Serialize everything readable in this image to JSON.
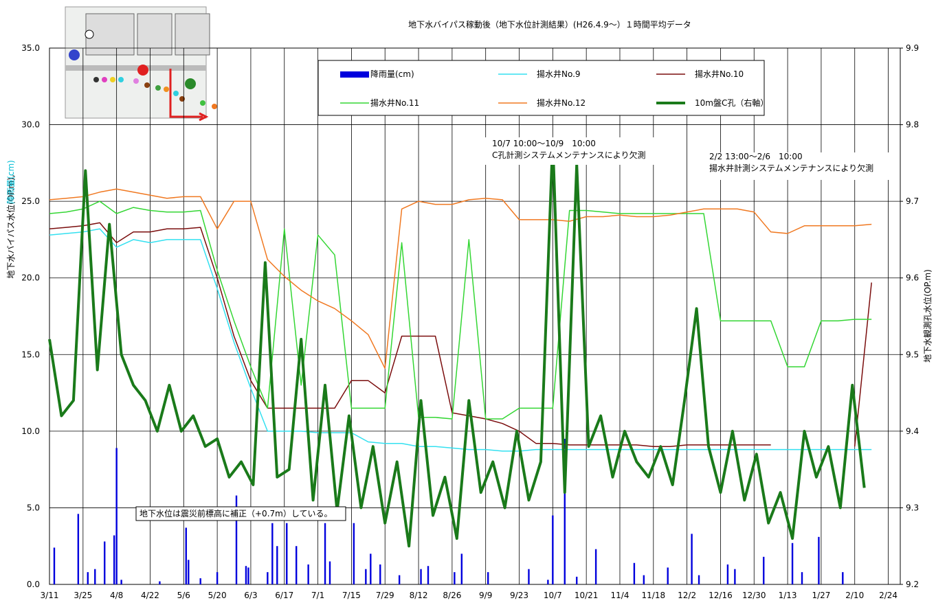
{
  "chart_data": {
    "type": "line",
    "title": "地下水バイパス稼動後（地下水位計測結果）(H26.4.9～）１時間平均データ",
    "y_label": "地下水バイパス水位(OP.m),",
    "y_label_rain": "降雨量(cm)",
    "y2_label": "地下水観測孔水位(OP.m)",
    "annotations": [
      "10/7 10:00～10/9　10:00",
      "C孔計測システムメンテナンスにより欠測",
      "2/2 13:00～2/6　10:00",
      "揚水井計測システムメンテナンスにより欠測",
      "地下水位は震災前標高に補正（+0.7m）している。"
    ],
    "grid": true,
    "xlim": [
      0,
      355
    ],
    "xticks": [
      {
        "value": 0,
        "label": "3/11"
      },
      {
        "value": 14,
        "label": "3/25"
      },
      {
        "value": 28,
        "label": "4/8"
      },
      {
        "value": 42,
        "label": "4/22"
      },
      {
        "value": 56,
        "label": "5/6"
      },
      {
        "value": 70,
        "label": "5/20"
      },
      {
        "value": 84,
        "label": "6/3"
      },
      {
        "value": 98,
        "label": "6/17"
      },
      {
        "value": 112,
        "label": "7/1"
      },
      {
        "value": 126,
        "label": "7/15"
      },
      {
        "value": 140,
        "label": "7/29"
      },
      {
        "value": 154,
        "label": "8/12"
      },
      {
        "value": 168,
        "label": "8/26"
      },
      {
        "value": 182,
        "label": "9/9"
      },
      {
        "value": 196,
        "label": "9/23"
      },
      {
        "value": 210,
        "label": "10/7"
      },
      {
        "value": 224,
        "label": "10/21"
      },
      {
        "value": 238,
        "label": "11/4"
      },
      {
        "value": 252,
        "label": "11/18"
      },
      {
        "value": 266,
        "label": "12/2"
      },
      {
        "value": 280,
        "label": "12/16"
      },
      {
        "value": 294,
        "label": "12/30"
      },
      {
        "value": 308,
        "label": "1/13"
      },
      {
        "value": 322,
        "label": "1/27"
      },
      {
        "value": 336,
        "label": "2/10"
      },
      {
        "value": 350,
        "label": "2/24"
      }
    ],
    "ylim": [
      0,
      35
    ],
    "yticks": [
      {
        "value": 0,
        "label": "0.0"
      },
      {
        "value": 5,
        "label": "5.0"
      },
      {
        "value": 10,
        "label": "10.0"
      },
      {
        "value": 15,
        "label": "15.0"
      },
      {
        "value": 20,
        "label": "20.0"
      },
      {
        "value": 25,
        "label": "25.0"
      },
      {
        "value": 30,
        "label": "30.0"
      },
      {
        "value": 35,
        "label": "35.0"
      }
    ],
    "y2lim": [
      9.2,
      9.9
    ],
    "y2ticks": [
      9.2,
      9.3,
      9.4,
      9.5,
      9.6,
      9.7,
      9.8,
      9.9
    ],
    "x": [
      0,
      7,
      14,
      21,
      28,
      35,
      42,
      49,
      56,
      63,
      70,
      77,
      84,
      91,
      98,
      105,
      112,
      119,
      126,
      133,
      140,
      147,
      154,
      161,
      168,
      175,
      182,
      189,
      196,
      203,
      210,
      217,
      224,
      231,
      238,
      245,
      252,
      259,
      266,
      273,
      280,
      287,
      294,
      301,
      308,
      315,
      322,
      329,
      336,
      343
    ],
    "series": [
      {
        "name": "降雨量(cm)",
        "type": "bar",
        "color": "#0000dd",
        "x": [
          2,
          12,
          16,
          19,
          23,
          27,
          28,
          30,
          46,
          57,
          58,
          63,
          70,
          78,
          82,
          83,
          91,
          93,
          95,
          99,
          103,
          108,
          115,
          117,
          127,
          132,
          134,
          138,
          146,
          155,
          158,
          169,
          172,
          183,
          200,
          208,
          210,
          215,
          220,
          228,
          244,
          248,
          258,
          268,
          271,
          283,
          286,
          298,
          310,
          314,
          321,
          331
        ],
        "values": [
          2.4,
          4.6,
          0.8,
          1.0,
          2.8,
          3.2,
          8.9,
          0.3,
          0.2,
          3.7,
          1.6,
          0.4,
          0.8,
          5.8,
          1.2,
          1.1,
          0.8,
          4.0,
          2.5,
          4.0,
          2.5,
          1.3,
          4.0,
          1.5,
          4.0,
          1.0,
          2.0,
          1.3,
          0.6,
          1.0,
          1.2,
          0.8,
          2.0,
          0.8,
          1.0,
          0.3,
          4.5,
          9.5,
          0.5,
          2.3,
          1.4,
          0.6,
          1.1,
          3.3,
          0.6,
          1.3,
          1.0,
          1.8,
          2.7,
          0.8,
          3.1,
          0.8
        ]
      },
      {
        "name": "揚水井No.9",
        "color": "#33e0f0",
        "values": [
          22.8,
          22.9,
          23.0,
          23.2,
          22.0,
          22.5,
          22.3,
          22.5,
          22.5,
          22.5,
          19.3,
          15.8,
          12.8,
          10.0,
          10.0,
          10.0,
          9.9,
          9.9,
          9.9,
          9.3,
          9.2,
          9.2,
          9.0,
          9.0,
          8.9,
          8.8,
          8.8,
          8.7,
          8.7,
          8.8,
          8.8,
          8.8,
          8.8,
          8.8,
          8.8,
          8.8,
          8.8,
          8.8,
          8.8,
          8.8,
          8.8,
          8.8,
          8.8,
          8.8,
          8.8,
          8.8,
          8.8,
          8.8,
          8.8,
          8.8
        ]
      },
      {
        "name": "揚水井No.10",
        "color": "#7a0c0c",
        "values": [
          23.2,
          23.3,
          23.4,
          23.6,
          22.3,
          23.0,
          23.0,
          23.2,
          23.2,
          23.3,
          20.0,
          16.2,
          13.3,
          11.5,
          11.5,
          11.5,
          11.5,
          11.5,
          13.3,
          13.3,
          12.5,
          16.2,
          16.2,
          16.2,
          11.2,
          11.0,
          10.8,
          10.5,
          10.0,
          9.2,
          9.2,
          9.1,
          9.1,
          9.1,
          9.1,
          9.1,
          9.0,
          9.0,
          9.1,
          9.1,
          9.1,
          9.1,
          9.1,
          9.1,
          null,
          null,
          null,
          null,
          9.0,
          19.7
        ]
      },
      {
        "name": "揚水井No.11",
        "color": "#33d633",
        "values": [
          24.2,
          24.3,
          24.5,
          25.0,
          24.2,
          24.6,
          24.4,
          24.3,
          24.3,
          24.4,
          20.5,
          17.2,
          14.2,
          11.5,
          23.2,
          13.0,
          22.8,
          21.5,
          11.5,
          11.5,
          11.5,
          22.3,
          10.9,
          10.9,
          10.8,
          22.5,
          10.8,
          10.8,
          11.5,
          11.5,
          11.5,
          24.4,
          24.4,
          24.3,
          24.2,
          24.2,
          24.2,
          24.2,
          24.2,
          24.2,
          17.2,
          17.2,
          17.2,
          17.2,
          14.2,
          14.2,
          17.2,
          17.2,
          17.3,
          17.3
        ]
      },
      {
        "name": "揚水井No.12",
        "color": "#f07820",
        "values": [
          25.1,
          25.2,
          25.3,
          25.6,
          25.8,
          25.6,
          25.4,
          25.2,
          25.3,
          25.3,
          23.2,
          25.0,
          25.0,
          21.2,
          20.1,
          19.2,
          18.5,
          18.0,
          17.2,
          16.3,
          14.1,
          24.5,
          25.0,
          24.8,
          24.8,
          25.1,
          25.2,
          25.1,
          23.8,
          23.8,
          23.8,
          23.7,
          24.0,
          24.0,
          24.1,
          24.0,
          24.0,
          24.1,
          24.3,
          24.5,
          24.5,
          24.5,
          24.3,
          23.0,
          22.9,
          23.4,
          23.4,
          23.4,
          23.4,
          23.5
        ]
      },
      {
        "name": "10m盤C孔（右軸）",
        "color": "#1a7a1a",
        "axis": "y2",
        "x": [
          0,
          5,
          10,
          15,
          20,
          25,
          30,
          35,
          40,
          45,
          50,
          55,
          60,
          65,
          70,
          75,
          80,
          85,
          90,
          95,
          100,
          105,
          110,
          115,
          120,
          125,
          130,
          135,
          140,
          145,
          150,
          155,
          160,
          165,
          170,
          175,
          180,
          185,
          190,
          195,
          200,
          205,
          210,
          215,
          220,
          225,
          230,
          235,
          240,
          245,
          250,
          255,
          260,
          265,
          270,
          275,
          280,
          285,
          290,
          295,
          300,
          305,
          310,
          315,
          320,
          325,
          330,
          335,
          340
        ],
        "values": [
          9.52,
          9.42,
          9.44,
          9.74,
          9.48,
          9.67,
          9.5,
          9.46,
          9.44,
          9.4,
          9.46,
          9.4,
          9.42,
          9.38,
          9.39,
          9.34,
          9.36,
          9.33,
          9.62,
          9.34,
          9.35,
          9.52,
          9.31,
          9.46,
          9.296,
          9.42,
          9.3,
          9.38,
          9.28,
          9.36,
          9.25,
          9.44,
          9.29,
          9.34,
          9.26,
          9.44,
          9.32,
          9.36,
          9.3,
          9.4,
          9.31,
          9.36,
          9.78,
          9.32,
          9.748,
          9.38,
          9.42,
          9.34,
          9.4,
          9.36,
          9.34,
          9.38,
          9.33,
          9.44,
          9.56,
          9.38,
          9.32,
          9.4,
          9.31,
          9.37,
          9.28,
          9.32,
          9.26,
          9.4,
          9.34,
          9.38,
          9.3,
          9.46,
          9.326
        ]
      }
    ]
  }
}
